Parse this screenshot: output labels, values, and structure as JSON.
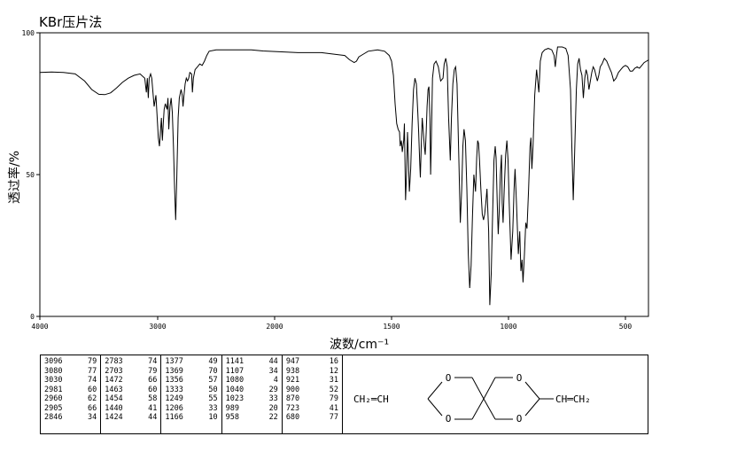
{
  "chart_data": {
    "type": "line",
    "title": "KBr压片法",
    "xlabel": "波数/cm⁻¹",
    "ylabel": "透过率/%",
    "xlim": [
      4000,
      400
    ],
    "ylim": [
      0,
      100
    ],
    "x_ticks": [
      4000,
      3000,
      2000,
      1500,
      1000,
      500
    ],
    "x_tick_labels": [
      "4000",
      "3000",
      "2000",
      "1500",
      "1000",
      "500"
    ],
    "y_ticks": [
      0,
      50,
      100
    ],
    "y_tick_labels": [
      "0",
      "50",
      "100"
    ],
    "grid": false,
    "series": [
      {
        "points": [
          [
            4000,
            86
          ],
          [
            3900,
            86.2
          ],
          [
            3800,
            86
          ],
          [
            3700,
            85.5
          ],
          [
            3620,
            83
          ],
          [
            3560,
            80
          ],
          [
            3500,
            78.3
          ],
          [
            3450,
            78.2
          ],
          [
            3400,
            78.8
          ],
          [
            3350,
            80.5
          ],
          [
            3300,
            82.5
          ],
          [
            3250,
            84
          ],
          [
            3200,
            85
          ],
          [
            3150,
            85.5
          ],
          [
            3110,
            84
          ],
          [
            3096,
            79
          ],
          [
            3088,
            84
          ],
          [
            3080,
            77
          ],
          [
            3072,
            84
          ],
          [
            3060,
            85.5
          ],
          [
            3050,
            84
          ],
          [
            3030,
            74
          ],
          [
            3015,
            78
          ],
          [
            3000,
            67
          ],
          [
            2995,
            63
          ],
          [
            2985,
            60
          ],
          [
            2975,
            66
          ],
          [
            2968,
            70
          ],
          [
            2960,
            62
          ],
          [
            2952,
            68
          ],
          [
            2945,
            73
          ],
          [
            2935,
            75
          ],
          [
            2920,
            73
          ],
          [
            2912,
            77
          ],
          [
            2905,
            66
          ],
          [
            2895,
            74
          ],
          [
            2885,
            77
          ],
          [
            2875,
            72
          ],
          [
            2865,
            60
          ],
          [
            2855,
            45
          ],
          [
            2846,
            34
          ],
          [
            2837,
            48
          ],
          [
            2825,
            70
          ],
          [
            2815,
            77
          ],
          [
            2800,
            80
          ],
          [
            2790,
            78
          ],
          [
            2783,
            74
          ],
          [
            2775,
            78
          ],
          [
            2765,
            82
          ],
          [
            2755,
            84
          ],
          [
            2745,
            83
          ],
          [
            2735,
            84
          ],
          [
            2725,
            86
          ],
          [
            2710,
            85.5
          ],
          [
            2703,
            79
          ],
          [
            2695,
            84
          ],
          [
            2680,
            87
          ],
          [
            2660,
            88
          ],
          [
            2640,
            89
          ],
          [
            2620,
            88.5
          ],
          [
            2600,
            90
          ],
          [
            2580,
            92
          ],
          [
            2560,
            93.5
          ],
          [
            2500,
            94
          ],
          [
            2400,
            94
          ],
          [
            2300,
            94
          ],
          [
            2200,
            94
          ],
          [
            2100,
            93.6
          ],
          [
            2000,
            93.4
          ],
          [
            1900,
            93
          ],
          [
            1800,
            93
          ],
          [
            1750,
            92.5
          ],
          [
            1700,
            92
          ],
          [
            1680,
            90.5
          ],
          [
            1660,
            89.5
          ],
          [
            1650,
            90
          ],
          [
            1640,
            91.5
          ],
          [
            1620,
            92.5
          ],
          [
            1600,
            93.5
          ],
          [
            1560,
            94
          ],
          [
            1530,
            93.5
          ],
          [
            1510,
            92
          ],
          [
            1500,
            90
          ],
          [
            1492,
            85
          ],
          [
            1485,
            75
          ],
          [
            1478,
            68
          ],
          [
            1472,
            66
          ],
          [
            1466,
            65
          ],
          [
            1463,
            60
          ],
          [
            1458,
            62
          ],
          [
            1454,
            58
          ],
          [
            1448,
            62
          ],
          [
            1445,
            68
          ],
          [
            1440,
            41
          ],
          [
            1436,
            50
          ],
          [
            1432,
            65
          ],
          [
            1428,
            56
          ],
          [
            1424,
            44
          ],
          [
            1418,
            52
          ],
          [
            1412,
            68
          ],
          [
            1406,
            80
          ],
          [
            1400,
            84
          ],
          [
            1394,
            82
          ],
          [
            1388,
            72
          ],
          [
            1384,
            65
          ],
          [
            1380,
            55
          ],
          [
            1377,
            49
          ],
          [
            1373,
            60
          ],
          [
            1369,
            70
          ],
          [
            1365,
            66
          ],
          [
            1360,
            60
          ],
          [
            1356,
            57
          ],
          [
            1352,
            65
          ],
          [
            1348,
            74
          ],
          [
            1344,
            80
          ],
          [
            1340,
            81
          ],
          [
            1336,
            70
          ],
          [
            1333,
            50
          ],
          [
            1330,
            62
          ],
          [
            1325,
            84
          ],
          [
            1318,
            89
          ],
          [
            1310,
            90
          ],
          [
            1300,
            88
          ],
          [
            1290,
            83
          ],
          [
            1280,
            84
          ],
          [
            1275,
            89
          ],
          [
            1268,
            91
          ],
          [
            1262,
            88
          ],
          [
            1256,
            70
          ],
          [
            1249,
            55
          ],
          [
            1244,
            70
          ],
          [
            1238,
            82
          ],
          [
            1232,
            87
          ],
          [
            1226,
            88
          ],
          [
            1220,
            82
          ],
          [
            1212,
            55
          ],
          [
            1206,
            33
          ],
          [
            1200,
            45
          ],
          [
            1195,
            60
          ],
          [
            1190,
            66
          ],
          [
            1184,
            62
          ],
          [
            1178,
            45
          ],
          [
            1172,
            22
          ],
          [
            1166,
            10
          ],
          [
            1160,
            18
          ],
          [
            1154,
            35
          ],
          [
            1148,
            50
          ],
          [
            1141,
            44
          ],
          [
            1136,
            56
          ],
          [
            1132,
            62
          ],
          [
            1128,
            61
          ],
          [
            1124,
            55
          ],
          [
            1118,
            45
          ],
          [
            1112,
            36
          ],
          [
            1107,
            34
          ],
          [
            1102,
            36
          ],
          [
            1097,
            40
          ],
          [
            1092,
            45
          ],
          [
            1085,
            30
          ],
          [
            1080,
            4
          ],
          [
            1074,
            15
          ],
          [
            1068,
            35
          ],
          [
            1062,
            55
          ],
          [
            1057,
            60
          ],
          [
            1053,
            56
          ],
          [
            1048,
            40
          ],
          [
            1044,
            29
          ],
          [
            1040,
            36
          ],
          [
            1035,
            50
          ],
          [
            1030,
            57
          ],
          [
            1027,
            40
          ],
          [
            1023,
            33
          ],
          [
            1018,
            45
          ],
          [
            1012,
            57
          ],
          [
            1007,
            62
          ],
          [
            1002,
            55
          ],
          [
            997,
            40
          ],
          [
            989,
            20
          ],
          [
            982,
            30
          ],
          [
            976,
            45
          ],
          [
            972,
            52
          ],
          [
            966,
            40
          ],
          [
            958,
            22
          ],
          [
            952,
            30
          ],
          [
            947,
            16
          ],
          [
            942,
            20
          ],
          [
            938,
            12
          ],
          [
            932,
            22
          ],
          [
            926,
            33
          ],
          [
            921,
            31
          ],
          [
            914,
            45
          ],
          [
            908,
            60
          ],
          [
            904,
            63
          ],
          [
            900,
            52
          ],
          [
            895,
            60
          ],
          [
            888,
            78
          ],
          [
            880,
            87
          ],
          [
            870,
            79
          ],
          [
            864,
            90
          ],
          [
            856,
            93
          ],
          [
            845,
            94
          ],
          [
            830,
            94.5
          ],
          [
            815,
            94
          ],
          [
            805,
            92
          ],
          [
            800,
            88
          ],
          [
            795,
            92
          ],
          [
            790,
            95
          ],
          [
            770,
            95
          ],
          [
            755,
            94.5
          ],
          [
            745,
            92
          ],
          [
            735,
            80
          ],
          [
            729,
            60
          ],
          [
            723,
            41
          ],
          [
            717,
            58
          ],
          [
            710,
            80
          ],
          [
            704,
            89
          ],
          [
            698,
            91
          ],
          [
            692,
            87
          ],
          [
            686,
            85
          ],
          [
            680,
            77
          ],
          [
            674,
            84
          ],
          [
            668,
            87
          ],
          [
            662,
            85
          ],
          [
            656,
            80
          ],
          [
            650,
            83
          ],
          [
            644,
            86
          ],
          [
            638,
            88
          ],
          [
            632,
            87
          ],
          [
            626,
            85
          ],
          [
            620,
            83
          ],
          [
            614,
            85
          ],
          [
            608,
            88
          ],
          [
            600,
            89
          ],
          [
            590,
            91
          ],
          [
            580,
            90
          ],
          [
            570,
            88
          ],
          [
            560,
            86
          ],
          [
            550,
            83
          ],
          [
            540,
            84
          ],
          [
            530,
            86
          ],
          [
            520,
            87
          ],
          [
            510,
            88
          ],
          [
            500,
            88.5
          ],
          [
            490,
            88
          ],
          [
            480,
            86.5
          ],
          [
            470,
            86.5
          ],
          [
            460,
            87.5
          ],
          [
            450,
            88
          ],
          [
            440,
            87.5
          ],
          [
            430,
            88.5
          ],
          [
            420,
            89.5
          ],
          [
            410,
            90
          ],
          [
            400,
            90.5
          ]
        ]
      }
    ],
    "peak_table": [
      [
        [
          "3096",
          "79"
        ],
        [
          "3080",
          "77"
        ],
        [
          "3030",
          "74"
        ],
        [
          "2981",
          "60"
        ],
        [
          "2960",
          "62"
        ],
        [
          "2905",
          "66"
        ],
        [
          "2846",
          "34"
        ]
      ],
      [
        [
          "2783",
          "74"
        ],
        [
          "2703",
          "79"
        ],
        [
          "1472",
          "66"
        ],
        [
          "1463",
          "60"
        ],
        [
          "1454",
          "58"
        ],
        [
          "1440",
          "41"
        ],
        [
          "1424",
          "44"
        ]
      ],
      [
        [
          "1377",
          "49"
        ],
        [
          "1369",
          "70"
        ],
        [
          "1356",
          "57"
        ],
        [
          "1333",
          "50"
        ],
        [
          "1249",
          "55"
        ],
        [
          "1206",
          "33"
        ],
        [
          "1166",
          "10"
        ]
      ],
      [
        [
          "1141",
          "44"
        ],
        [
          "1107",
          "34"
        ],
        [
          "1080",
          "4"
        ],
        [
          "1040",
          "29"
        ],
        [
          "1023",
          "33"
        ],
        [
          "989",
          "20"
        ],
        [
          "958",
          "22"
        ]
      ],
      [
        [
          "947",
          "16"
        ],
        [
          "938",
          "12"
        ],
        [
          "921",
          "31"
        ],
        [
          "900",
          "52"
        ],
        [
          "870",
          "79"
        ],
        [
          "723",
          "41"
        ],
        [
          "680",
          "77"
        ]
      ]
    ]
  },
  "structure": {
    "left_group": "CH₂═CH",
    "ring_atoms": [
      "O",
      "O",
      "O",
      "O"
    ],
    "right_group": "CH═CH₂"
  }
}
